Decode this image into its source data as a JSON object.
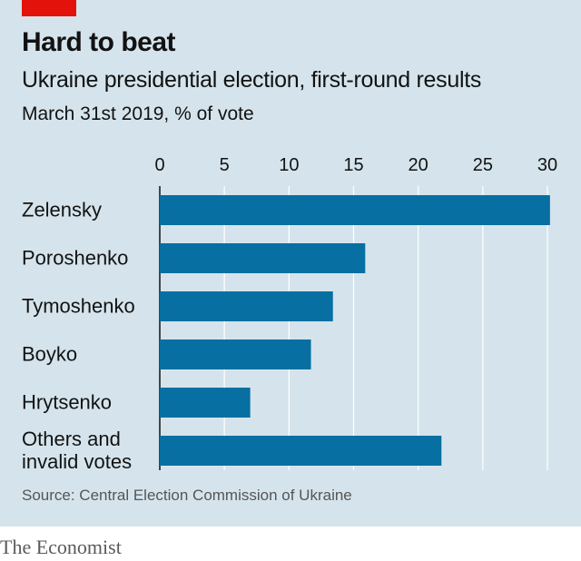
{
  "title": "Hard to beat",
  "subtitle": "Ukraine presidential election, first-round results",
  "units": "March 31st 2019, % of vote",
  "source": "Source: Central Election Commission of Ukraine",
  "footer": "The Economist",
  "colors": {
    "bar": "#076fa1",
    "background": "#d5e4ec",
    "accent": "#e3120b",
    "grid": "#ffffff"
  },
  "chart_data": {
    "type": "bar",
    "orientation": "horizontal",
    "categories": [
      "Zelensky",
      "Poroshenko",
      "Tymoshenko",
      "Boyko",
      "Hrytsenko",
      "Others and invalid votes"
    ],
    "category_lines": [
      [
        "Zelensky"
      ],
      [
        "Poroshenko"
      ],
      [
        "Tymoshenko"
      ],
      [
        "Boyko"
      ],
      [
        "Hrytsenko"
      ],
      [
        "Others and",
        "invalid votes"
      ]
    ],
    "values": [
      30.2,
      15.9,
      13.4,
      11.7,
      7.0,
      21.8
    ],
    "xlim": [
      0,
      30
    ],
    "xticks": [
      0,
      5,
      10,
      15,
      20,
      25,
      30
    ],
    "grid": true,
    "xlabel": "",
    "ylabel": ""
  }
}
